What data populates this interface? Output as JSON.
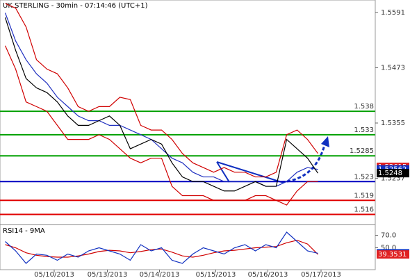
{
  "chart_data": [
    {
      "type": "line",
      "title": "UK STERLING - 30min - 07:14:46 (UTC+1)",
      "x": [
        0,
        1,
        2,
        3,
        4,
        5,
        6,
        7,
        8,
        9,
        10,
        11,
        12,
        13,
        14,
        15,
        16,
        17,
        18,
        19,
        20,
        21,
        22,
        23,
        24,
        25,
        26,
        27,
        28,
        29,
        30
      ],
      "xlim": [
        -0.5,
        35.5
      ],
      "xticks": [
        {
          "value": 4.7,
          "label": "05/10/2013"
        },
        {
          "value": 9.8,
          "label": "05/13/2013"
        },
        {
          "value": 14.8,
          "label": "05/14/2013"
        },
        {
          "value": 20.2,
          "label": "05/15/2013"
        },
        {
          "value": 25.2,
          "label": "05/16/2013"
        },
        {
          "value": 30.3,
          "label": "05/17/2013"
        }
      ],
      "ylim": [
        1.514,
        1.561
      ],
      "yticks": [
        1.5591,
        1.5473,
        1.5355,
        1.5237
      ],
      "series": [
        {
          "color": "#d00000",
          "values": [
            1.561,
            1.56,
            1.556,
            1.549,
            1.547,
            1.546,
            1.543,
            1.539,
            1.538,
            1.539,
            1.539,
            1.541,
            1.5405,
            1.535,
            1.534,
            1.534,
            1.532,
            1.529,
            1.527,
            1.526,
            1.525,
            1.526,
            1.525,
            1.525,
            1.524,
            1.524,
            1.525,
            1.533,
            1.534,
            1.532,
            1.529
          ]
        },
        {
          "color": "#d00000",
          "values": [
            1.552,
            1.547,
            1.54,
            1.539,
            1.538,
            1.535,
            1.532,
            1.532,
            1.532,
            1.533,
            1.532,
            1.53,
            1.528,
            1.527,
            1.528,
            1.528,
            1.522,
            1.52,
            1.52,
            1.52,
            1.519,
            1.519,
            1.519,
            1.519,
            1.52,
            1.52,
            1.519,
            1.518,
            1.521,
            1.523,
            1.523
          ]
        },
        {
          "color": "#2030c0",
          "values": [
            1.559,
            1.553,
            1.549,
            1.546,
            1.544,
            1.541,
            1.539,
            1.537,
            1.536,
            1.536,
            1.535,
            1.535,
            1.534,
            1.533,
            1.532,
            1.53,
            1.528,
            1.527,
            1.525,
            1.524,
            1.524,
            1.523,
            1.523,
            1.523,
            1.523,
            1.522,
            1.522,
            1.523,
            1.525,
            1.526,
            1.5256
          ]
        },
        {
          "color": "#000000",
          "values": [
            1.558,
            1.551,
            1.545,
            1.543,
            1.542,
            1.54,
            1.537,
            1.535,
            1.535,
            1.536,
            1.537,
            1.535,
            1.53,
            1.531,
            1.532,
            1.531,
            1.527,
            1.524,
            1.523,
            1.523,
            1.522,
            1.521,
            1.521,
            1.522,
            1.523,
            1.522,
            1.522,
            1.532,
            1.53,
            1.528,
            1.5248
          ]
        }
      ],
      "levels": [
        {
          "value": 1.538,
          "color": "#00a000"
        },
        {
          "value": 1.533,
          "color": "#00a000"
        },
        {
          "value": 1.5285,
          "color": "#00a000"
        },
        {
          "value": 1.523,
          "color": "#0000c0"
        },
        {
          "value": 1.519,
          "color": "#e00000"
        },
        {
          "value": 1.516,
          "color": "#e00000"
        }
      ],
      "price_markers": [
        {
          "value": 1.52615,
          "color": "#e02020"
        },
        {
          "value": 1.52562,
          "color": "#1030c0"
        },
        {
          "value": 1.5248,
          "color": "#000000"
        }
      ]
    },
    {
      "type": "line",
      "title": "RSI14 - 9MA",
      "x": [
        0,
        1,
        2,
        3,
        4,
        5,
        6,
        7,
        8,
        9,
        10,
        11,
        12,
        13,
        14,
        15,
        16,
        17,
        18,
        19,
        20,
        21,
        22,
        23,
        24,
        25,
        26,
        27,
        28,
        29,
        30
      ],
      "xlim": [
        -0.5,
        35.5
      ],
      "ylim": [
        15,
        85
      ],
      "yticks": [
        {
          "value": 70,
          "label": "70.0"
        },
        {
          "value": 50,
          "label": "50.0"
        }
      ],
      "series": [
        {
          "color": "#d00000",
          "values": [
            55,
            50,
            42,
            38,
            36,
            35,
            35,
            37,
            40,
            44,
            46,
            45,
            42,
            44,
            47,
            48,
            43,
            37,
            35,
            38,
            42,
            45,
            46,
            48,
            50,
            51,
            52,
            58,
            62,
            56,
            39.3531
          ]
        },
        {
          "color": "#1030c0",
          "values": [
            60,
            45,
            25,
            40,
            38,
            30,
            40,
            35,
            45,
            50,
            45,
            40,
            30,
            55,
            45,
            50,
            30,
            25,
            40,
            50,
            45,
            40,
            50,
            55,
            45,
            55,
            50,
            75,
            60,
            45,
            41.1746
          ]
        }
      ],
      "price_markers": [
        {
          "value": 41.1746,
          "color": "#1030c0"
        },
        {
          "value": 39.3531,
          "color": "#e02020"
        }
      ]
    }
  ]
}
